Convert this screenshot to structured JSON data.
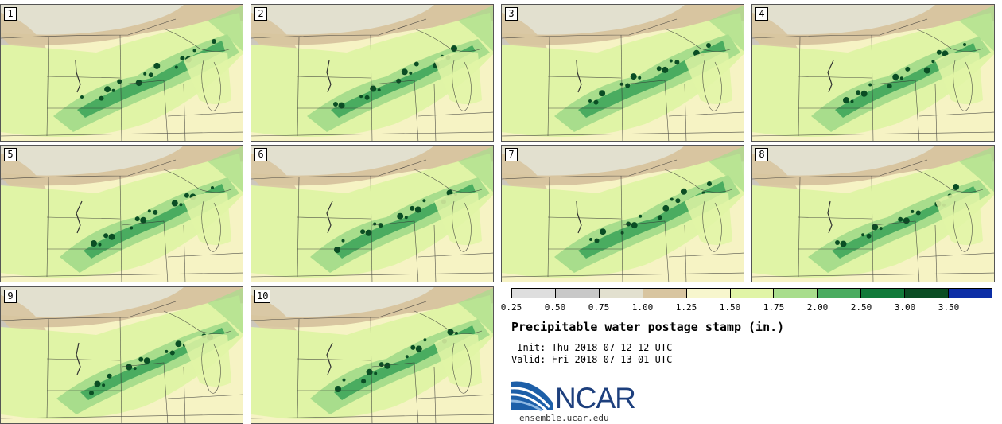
{
  "panels": [
    {
      "label": "1"
    },
    {
      "label": "2"
    },
    {
      "label": "3"
    },
    {
      "label": "4"
    },
    {
      "label": "5"
    },
    {
      "label": "6"
    },
    {
      "label": "7"
    },
    {
      "label": "8"
    },
    {
      "label": "9"
    },
    {
      "label": "10"
    }
  ],
  "colorbar": {
    "colors": [
      "#dedede",
      "#c8c8c8",
      "#e2e0cf",
      "#d8c5a0",
      "#f7f6cd",
      "#e0f4a6",
      "#a8dd8c",
      "#4aac60",
      "#117a3a",
      "#0a4d24",
      "#0c2ea6"
    ],
    "ticks": [
      "0.25",
      "0.50",
      "0.75",
      "1.00",
      "1.25",
      "1.50",
      "1.75",
      "2.00",
      "2.50",
      "3.00",
      "3.50"
    ]
  },
  "title": "Precipitable water postage stamp (in.)",
  "init_line": " Init: Thu 2018-07-12 12 UTC",
  "valid_line": "Valid: Fri 2018-07-13 01 UTC",
  "logo": {
    "name": "NCAR",
    "url": "ensemble.ucar.edu"
  }
}
